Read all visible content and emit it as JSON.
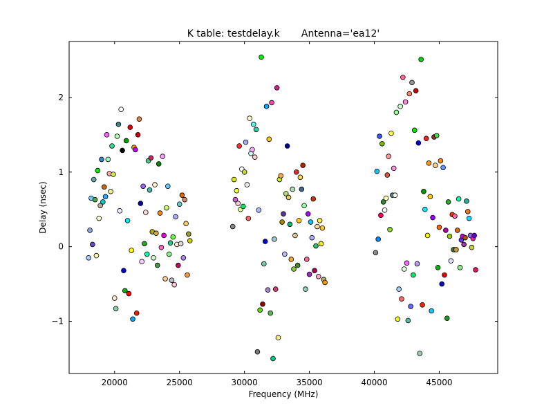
{
  "chart_data": {
    "type": "scatter",
    "title": "K table: testdelay.k       Antenna='ea12'",
    "xlabel": "Frequency (MHz)",
    "ylabel": "Delay (nsec)",
    "xlim": [
      16500,
      49500
    ],
    "ylim": [
      -1.7,
      2.75
    ],
    "xticks": [
      20000,
      25000,
      30000,
      35000,
      40000,
      45000
    ],
    "yticks": [
      -1,
      0,
      1,
      2
    ],
    "grid": false,
    "legend": "none",
    "marker_edge_color": "#000000",
    "points": [
      {
        "x": 18000,
        "y": -0.15,
        "c": "#aaccff"
      },
      {
        "x": 18100,
        "y": 0.22,
        "c": "#88aadd"
      },
      {
        "x": 18200,
        "y": 0.65,
        "c": "#66ccff"
      },
      {
        "x": 18300,
        "y": 0.03,
        "c": "#6644cc"
      },
      {
        "x": 18400,
        "y": 0.9,
        "c": "#66aaaa"
      },
      {
        "x": 18500,
        "y": 0.63,
        "c": "#44aa44"
      },
      {
        "x": 18600,
        "y": -0.12,
        "c": "#ffffaa"
      },
      {
        "x": 18700,
        "y": 1.02,
        "c": "#00ee00"
      },
      {
        "x": 18800,
        "y": 0.38,
        "c": "#ffffcc"
      },
      {
        "x": 18900,
        "y": 0.55,
        "c": "#bbaa99"
      },
      {
        "x": 19000,
        "y": 1.17,
        "c": "#3388cc"
      },
      {
        "x": 19100,
        "y": 0.6,
        "c": "#00cccc"
      },
      {
        "x": 19200,
        "y": 0.8,
        "c": "#cc6600"
      },
      {
        "x": 19300,
        "y": 0.67,
        "c": "#33aaff"
      },
      {
        "x": 19400,
        "y": 1.5,
        "c": "#ff66ff"
      },
      {
        "x": 19500,
        "y": 1.17,
        "c": "#99ffcc"
      },
      {
        "x": 19600,
        "y": 0.98,
        "c": "#ffaaaa"
      },
      {
        "x": 19700,
        "y": 0.74,
        "c": "#eeee88"
      },
      {
        "x": 19800,
        "y": 1.35,
        "c": "#33dd99"
      },
      {
        "x": 19900,
        "y": 0.97,
        "c": "#ccee44"
      },
      {
        "x": 20000,
        "y": -0.69,
        "c": "#ffeecc"
      },
      {
        "x": 20100,
        "y": -0.83,
        "c": "#88ccaa"
      },
      {
        "x": 20200,
        "y": 1.48,
        "c": "#aaffaa"
      },
      {
        "x": 20300,
        "y": 1.64,
        "c": "#338888"
      },
      {
        "x": 20400,
        "y": 0.48,
        "c": "#eeeeff"
      },
      {
        "x": 20500,
        "y": 1.84,
        "c": "#ffffff"
      },
      {
        "x": 20600,
        "y": 1.29,
        "c": "#000000"
      },
      {
        "x": 20700,
        "y": -0.32,
        "c": "#0000cc"
      },
      {
        "x": 20800,
        "y": -0.59,
        "c": "#11aa11"
      },
      {
        "x": 20900,
        "y": 1.42,
        "c": "#009900"
      },
      {
        "x": 21000,
        "y": 0.35,
        "c": "#00eeee"
      },
      {
        "x": 21100,
        "y": -0.63,
        "c": "#ff0000"
      },
      {
        "x": 21200,
        "y": 1.6,
        "c": "#dd0000"
      },
      {
        "x": 21300,
        "y": -0.05,
        "c": "#ffff00"
      },
      {
        "x": 21400,
        "y": -0.97,
        "c": "#00aaff"
      },
      {
        "x": 21500,
        "y": 1.33,
        "c": "#ff9900"
      },
      {
        "x": 21600,
        "y": 1.3,
        "c": "#cc00ff"
      },
      {
        "x": 21700,
        "y": -0.89,
        "c": "#ee2200"
      },
      {
        "x": 21800,
        "y": 1.5,
        "c": "#cc0000"
      },
      {
        "x": 21900,
        "y": 1.71,
        "c": "#dd8844"
      },
      {
        "x": 22000,
        "y": 0.58,
        "c": "#0000aa"
      },
      {
        "x": 22100,
        "y": -0.2,
        "c": "#ffccff"
      },
      {
        "x": 22200,
        "y": 0.81,
        "c": "#9966ff"
      },
      {
        "x": 22300,
        "y": 0.04,
        "c": "#22aa22"
      },
      {
        "x": 22400,
        "y": 0.46,
        "c": "#ffdddd"
      },
      {
        "x": 22500,
        "y": -0.1,
        "c": "#00ffaa"
      },
      {
        "x": 22600,
        "y": 1.15,
        "c": "#44cc88"
      },
      {
        "x": 22700,
        "y": 0.76,
        "c": "#44bbaa"
      },
      {
        "x": 22800,
        "y": 1.19,
        "c": "#cc2266"
      },
      {
        "x": 22900,
        "y": 0.2,
        "c": "#aaaa00"
      },
      {
        "x": 23000,
        "y": -0.15,
        "c": "#ccffcc"
      },
      {
        "x": 23100,
        "y": 0.83,
        "c": "#ffeecc"
      },
      {
        "x": 23200,
        "y": 0.18,
        "c": "#ccaa44"
      },
      {
        "x": 23300,
        "y": -0.25,
        "c": "#449944"
      },
      {
        "x": 23400,
        "y": 1.11,
        "c": "#008800"
      },
      {
        "x": 23500,
        "y": 0.45,
        "c": "#ff8800"
      },
      {
        "x": 23600,
        "y": -0.01,
        "c": "#ff66cc"
      },
      {
        "x": 23700,
        "y": 1.21,
        "c": "#ff99ff"
      },
      {
        "x": 23800,
        "y": 0.15,
        "c": "#ee00ee"
      },
      {
        "x": 23900,
        "y": -0.43,
        "c": "#ffcc99"
      },
      {
        "x": 24000,
        "y": 0.52,
        "c": "#ccff66"
      },
      {
        "x": 24100,
        "y": 0.81,
        "c": "#66ccff"
      },
      {
        "x": 24200,
        "y": -0.1,
        "c": "#88ee88"
      },
      {
        "x": 24300,
        "y": 0.05,
        "c": "#22cc88"
      },
      {
        "x": 24400,
        "y": -0.45,
        "c": "#bbbbbb"
      },
      {
        "x": 24500,
        "y": 0.13,
        "c": "#66ff33"
      },
      {
        "x": 24600,
        "y": -0.51,
        "c": "#ffccdd"
      },
      {
        "x": 24700,
        "y": 0.4,
        "c": "#aaaaff"
      },
      {
        "x": 24800,
        "y": 0.03,
        "c": "#ffeedd"
      },
      {
        "x": 24900,
        "y": -0.25,
        "c": "#cc0066"
      },
      {
        "x": 25000,
        "y": 0.57,
        "c": "#66cccc"
      },
      {
        "x": 25100,
        "y": 0.04,
        "c": "#dddddd"
      },
      {
        "x": 25200,
        "y": 0.69,
        "c": "#dd6600"
      },
      {
        "x": 25300,
        "y": -0.15,
        "c": "#aa88ff"
      },
      {
        "x": 25400,
        "y": 0.63,
        "c": "#cc8866"
      },
      {
        "x": 25500,
        "y": 0.31,
        "c": "#ffcc66"
      },
      {
        "x": 25600,
        "y": -0.38,
        "c": "#ff9933"
      },
      {
        "x": 25700,
        "y": 0.17,
        "c": "#999933"
      },
      {
        "x": 25800,
        "y": 0.08,
        "c": "#cccc00"
      },
      {
        "x": 29100,
        "y": 0.27,
        "c": "#888888"
      },
      {
        "x": 29200,
        "y": 0.9,
        "c": "#ddee00"
      },
      {
        "x": 29300,
        "y": 0.63,
        "c": "#cc66cc"
      },
      {
        "x": 29400,
        "y": 0.75,
        "c": "#eeff44"
      },
      {
        "x": 29500,
        "y": 0.58,
        "c": "#ffcccc"
      },
      {
        "x": 29600,
        "y": 1.35,
        "c": "#ff3333"
      },
      {
        "x": 29700,
        "y": 0.5,
        "c": "#ddff88"
      },
      {
        "x": 29800,
        "y": 1.04,
        "c": "#ffffff"
      },
      {
        "x": 29900,
        "y": 0.54,
        "c": "#00ee66"
      },
      {
        "x": 30000,
        "y": 1.0,
        "c": "#ccdd33"
      },
      {
        "x": 30100,
        "y": 1.4,
        "c": "#aaaaff"
      },
      {
        "x": 30200,
        "y": 0.83,
        "c": "#eeeeee"
      },
      {
        "x": 30300,
        "y": 0.38,
        "c": "#ff6666"
      },
      {
        "x": 30400,
        "y": 1.72,
        "c": "#ffffcc"
      },
      {
        "x": 30500,
        "y": 1.25,
        "c": "#ccffff"
      },
      {
        "x": 30600,
        "y": 1.3,
        "c": "#ffaaff"
      },
      {
        "x": 30700,
        "y": 1.64,
        "c": "#66eeee"
      },
      {
        "x": 30800,
        "y": 1.2,
        "c": "#ffcccc"
      },
      {
        "x": 30900,
        "y": 1.57,
        "c": "#33ccaa"
      },
      {
        "x": 31000,
        "y": -1.41,
        "c": "#777777"
      },
      {
        "x": 31100,
        "y": 0.49,
        "c": "#aabbff"
      },
      {
        "x": 31200,
        "y": -0.85,
        "c": "#66dd00"
      },
      {
        "x": 31300,
        "y": 2.54,
        "c": "#00ee00"
      },
      {
        "x": 31400,
        "y": -0.77,
        "c": "#990000"
      },
      {
        "x": 31500,
        "y": -0.23,
        "c": "#77ccaa"
      },
      {
        "x": 31600,
        "y": 0.07,
        "c": "#0000dd"
      },
      {
        "x": 31700,
        "y": 1.88,
        "c": "#00aaff"
      },
      {
        "x": 31800,
        "y": -0.58,
        "c": "#aa88cc"
      },
      {
        "x": 31900,
        "y": 1.44,
        "c": "#ffcc00"
      },
      {
        "x": 32000,
        "y": -0.89,
        "c": "#55bb55"
      },
      {
        "x": 32100,
        "y": 1.93,
        "c": "#ff44aa"
      },
      {
        "x": 32200,
        "y": -1.5,
        "c": "#00cc88"
      },
      {
        "x": 32300,
        "y": 0.1,
        "c": "#99cccc"
      },
      {
        "x": 32400,
        "y": -0.57,
        "c": "#cc4477"
      },
      {
        "x": 32500,
        "y": 2.13,
        "c": "#cc2288"
      },
      {
        "x": 32600,
        "y": -1.22,
        "c": "#ffee88"
      },
      {
        "x": 32700,
        "y": 0.9,
        "c": "#ccee33"
      },
      {
        "x": 32800,
        "y": 0.95,
        "c": "#ffaa44"
      },
      {
        "x": 32900,
        "y": 0.33,
        "c": "#aa8800"
      },
      {
        "x": 33000,
        "y": 0.44,
        "c": "#553399"
      },
      {
        "x": 33100,
        "y": -0.1,
        "c": "#bbbbff"
      },
      {
        "x": 33200,
        "y": 0.71,
        "c": "#bbdd66"
      },
      {
        "x": 33300,
        "y": 1.35,
        "c": "#000099"
      },
      {
        "x": 33400,
        "y": 0.66,
        "c": "#eecc66"
      },
      {
        "x": 33500,
        "y": 0.3,
        "c": "#00bb77"
      },
      {
        "x": 33600,
        "y": -0.17,
        "c": "#ffaa22"
      },
      {
        "x": 33700,
        "y": 0.77,
        "c": "#aaddaa"
      },
      {
        "x": 33800,
        "y": -0.3,
        "c": "#88cc33"
      },
      {
        "x": 33900,
        "y": 0.15,
        "c": "#ddcc99"
      },
      {
        "x": 34000,
        "y": 1.0,
        "c": "#dd3333"
      },
      {
        "x": 34100,
        "y": -0.25,
        "c": "#448833"
      },
      {
        "x": 34200,
        "y": 0.35,
        "c": "#ffcc00"
      },
      {
        "x": 34300,
        "y": 0.93,
        "c": "#ffdd55"
      },
      {
        "x": 34400,
        "y": 0.77,
        "c": "#446688"
      },
      {
        "x": 34500,
        "y": 1.09,
        "c": "#aa2200"
      },
      {
        "x": 34600,
        "y": 0.55,
        "c": "#99ffaa"
      },
      {
        "x": 34700,
        "y": -0.57,
        "c": "#99ccbb"
      },
      {
        "x": 34800,
        "y": -0.17,
        "c": "#ff6699"
      },
      {
        "x": 34900,
        "y": 0.44,
        "c": "#aa00ff"
      },
      {
        "x": 35000,
        "y": -0.37,
        "c": "#aa22cc"
      },
      {
        "x": 35100,
        "y": 0.33,
        "c": "#00ccff"
      },
      {
        "x": 35200,
        "y": 0.12,
        "c": "#aaaaff"
      },
      {
        "x": 35300,
        "y": 0.64,
        "c": "#cc3300"
      },
      {
        "x": 35400,
        "y": -0.32,
        "c": "#aa0055"
      },
      {
        "x": 35500,
        "y": 0.01,
        "c": "#33bb66"
      },
      {
        "x": 35600,
        "y": 0.27,
        "c": "#ffdd99"
      },
      {
        "x": 35700,
        "y": -0.4,
        "c": "#ffaacc"
      },
      {
        "x": 35800,
        "y": 0.35,
        "c": "#ffee33"
      },
      {
        "x": 35900,
        "y": 0.04,
        "c": "#eeee00"
      },
      {
        "x": 36000,
        "y": 0.25,
        "c": "#ffcc33"
      },
      {
        "x": 36100,
        "y": -0.44,
        "c": "#aaaa66"
      },
      {
        "x": 36200,
        "y": -0.48,
        "c": "#ff9900"
      },
      {
        "x": 40100,
        "y": -0.08,
        "c": "#888888"
      },
      {
        "x": 40200,
        "y": 1.01,
        "c": "#00ccff"
      },
      {
        "x": 40300,
        "y": 0.1,
        "c": "#0088ff"
      },
      {
        "x": 40400,
        "y": 1.48,
        "c": "#3355ff"
      },
      {
        "x": 40500,
        "y": 0.42,
        "c": "#ff0066"
      },
      {
        "x": 40600,
        "y": 1.38,
        "c": "#77bb00"
      },
      {
        "x": 40700,
        "y": 0.6,
        "c": "#338833"
      },
      {
        "x": 40800,
        "y": 0.49,
        "c": "#ffffff"
      },
      {
        "x": 40900,
        "y": 0.65,
        "c": "#ffffaa"
      },
      {
        "x": 41000,
        "y": 0.96,
        "c": "#dd5544"
      },
      {
        "x": 41100,
        "y": 1.21,
        "c": "#ff9999"
      },
      {
        "x": 41200,
        "y": 0.23,
        "c": "#88dd33"
      },
      {
        "x": 41300,
        "y": 1.52,
        "c": "#ffff33"
      },
      {
        "x": 41400,
        "y": 0.69,
        "c": "#558888"
      },
      {
        "x": 41500,
        "y": 1.05,
        "c": "#ff99dd"
      },
      {
        "x": 41600,
        "y": 0.69,
        "c": "#ffffee"
      },
      {
        "x": 41700,
        "y": 1.8,
        "c": "#99ff99"
      },
      {
        "x": 41800,
        "y": -0.97,
        "c": "#eeff00"
      },
      {
        "x": 41900,
        "y": -0.57,
        "c": "#aaccee"
      },
      {
        "x": 42000,
        "y": 1.88,
        "c": "#ccffcc"
      },
      {
        "x": 42100,
        "y": -0.7,
        "c": "#ff6666"
      },
      {
        "x": 42200,
        "y": 2.27,
        "c": "#ff6699"
      },
      {
        "x": 42300,
        "y": -0.3,
        "c": "#ddffdd"
      },
      {
        "x": 42400,
        "y": 1.94,
        "c": "#ff88dd"
      },
      {
        "x": 42500,
        "y": -0.22,
        "c": "#ff66ff"
      },
      {
        "x": 42600,
        "y": -0.99,
        "c": "#55bbaa"
      },
      {
        "x": 42700,
        "y": 2.05,
        "c": "#ff8866"
      },
      {
        "x": 42800,
        "y": -0.8,
        "c": "#6666ff"
      },
      {
        "x": 42900,
        "y": 2.2,
        "c": "#999999"
      },
      {
        "x": 43000,
        "y": -0.38,
        "c": "#00ee66"
      },
      {
        "x": 43100,
        "y": 1.56,
        "c": "#00ee00"
      },
      {
        "x": 43200,
        "y": 2.09,
        "c": "#cc0000"
      },
      {
        "x": 43300,
        "y": -0.23,
        "c": "#bb99ff"
      },
      {
        "x": 43400,
        "y": 1.39,
        "c": "#0000dd"
      },
      {
        "x": 43500,
        "y": -1.43,
        "c": "#99ccaa"
      },
      {
        "x": 43600,
        "y": 2.51,
        "c": "#00dd00"
      },
      {
        "x": 43700,
        "y": -0.78,
        "c": "#ff2200"
      },
      {
        "x": 43800,
        "y": 0.74,
        "c": "#009900"
      },
      {
        "x": 43900,
        "y": 0.5,
        "c": "#00eeff"
      },
      {
        "x": 44000,
        "y": 1.45,
        "c": "#ee2222"
      },
      {
        "x": 44100,
        "y": 0.15,
        "c": "#ffff00"
      },
      {
        "x": 44200,
        "y": 1.12,
        "c": "#ff9900"
      },
      {
        "x": 44300,
        "y": 0.67,
        "c": "#ffcc00"
      },
      {
        "x": 44400,
        "y": -0.86,
        "c": "#00ccff"
      },
      {
        "x": 44500,
        "y": 0.39,
        "c": "#9900ff"
      },
      {
        "x": 44600,
        "y": 1.47,
        "c": "#aa2222"
      },
      {
        "x": 44700,
        "y": 1.09,
        "c": "#ffcc88"
      },
      {
        "x": 44800,
        "y": 1.49,
        "c": "#44dd44"
      },
      {
        "x": 44900,
        "y": -0.28,
        "c": "#00bb00"
      },
      {
        "x": 45000,
        "y": 0.26,
        "c": "#ff6600"
      },
      {
        "x": 45100,
        "y": 1.15,
        "c": "#ff8800"
      },
      {
        "x": 45200,
        "y": -0.5,
        "c": "#0000cc"
      },
      {
        "x": 45300,
        "y": 1.06,
        "c": "#6699ff"
      },
      {
        "x": 45400,
        "y": -0.38,
        "c": "#ee0000"
      },
      {
        "x": 45500,
        "y": 0.22,
        "c": "#aa00aa"
      },
      {
        "x": 45600,
        "y": -0.96,
        "c": "#229922"
      },
      {
        "x": 45700,
        "y": 0.6,
        "c": "#33aa33"
      },
      {
        "x": 45800,
        "y": 0.14,
        "c": "#99cc00"
      },
      {
        "x": 45900,
        "y": -0.19,
        "c": "#ddddff"
      },
      {
        "x": 46000,
        "y": 0.43,
        "c": "#ff3300"
      },
      {
        "x": 46100,
        "y": -0.04,
        "c": "#447722"
      },
      {
        "x": 46200,
        "y": 0.41,
        "c": "#ff66aa"
      },
      {
        "x": 46300,
        "y": -0.04,
        "c": "#cc9933"
      },
      {
        "x": 46400,
        "y": 0.22,
        "c": "#dd6600"
      },
      {
        "x": 46500,
        "y": 0.64,
        "c": "#00ffaa"
      },
      {
        "x": 46600,
        "y": -0.28,
        "c": "#88ee88"
      },
      {
        "x": 46700,
        "y": 0.09,
        "c": "#6633ff"
      },
      {
        "x": 46800,
        "y": 0.14,
        "c": "#cc00ee"
      },
      {
        "x": 46900,
        "y": 0.03,
        "c": "#993399"
      },
      {
        "x": 47000,
        "y": 0.12,
        "c": "#aa5500"
      },
      {
        "x": 47100,
        "y": 0.61,
        "c": "#33aa99"
      },
      {
        "x": 47200,
        "y": 0.47,
        "c": "#ee7722"
      },
      {
        "x": 47300,
        "y": 0.38,
        "c": "#00ddff"
      },
      {
        "x": 47400,
        "y": 0.15,
        "c": "#9966ff"
      },
      {
        "x": 47500,
        "y": -0.01,
        "c": "#cccc33"
      },
      {
        "x": 47600,
        "y": 0.11,
        "c": "#dd22aa"
      },
      {
        "x": 47700,
        "y": 0.15,
        "c": "#6600cc"
      },
      {
        "x": 47800,
        "y": -0.31,
        "c": "#ee1155"
      }
    ]
  }
}
